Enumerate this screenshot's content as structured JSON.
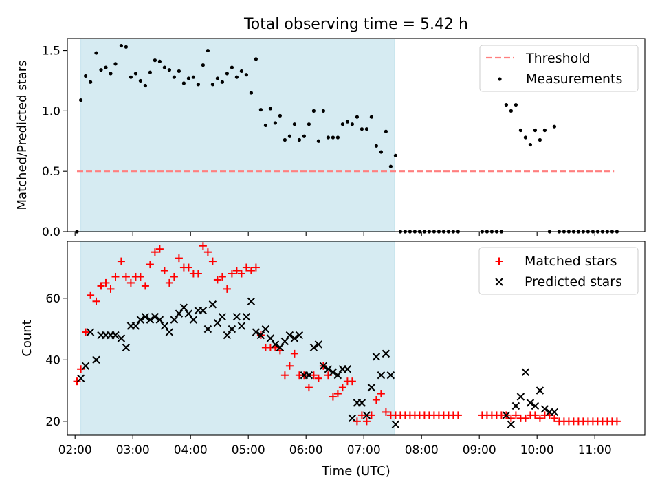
{
  "chart_data": [
    {
      "type": "scatter",
      "title": "Total observing time = 5.42 h",
      "xlabel": "",
      "ylabel": "Matched/Predicted stars",
      "x_unit": "time (UTC)",
      "xlim": [
        "01:52",
        "11:52"
      ],
      "ylim": [
        0,
        1.6
      ],
      "yticks": [
        0.0,
        0.5,
        1.0,
        1.5
      ],
      "ytick_labels": [
        "0.0",
        "0.5",
        "1.0",
        "1.5"
      ],
      "shaded_span": [
        "02:06",
        "07:32"
      ],
      "shade_color": "#add8e6",
      "legend_position": "upper right",
      "series": [
        {
          "name": "Threshold",
          "kind": "line",
          "style": "dashed",
          "color": "#ff7f7f",
          "x": [
            "02:02",
            "11:20"
          ],
          "y": [
            0.5,
            0.5
          ]
        },
        {
          "name": "Measurements",
          "kind": "points",
          "color": "#000000",
          "x": [
            "02:02",
            "02:06",
            "02:11",
            "02:16",
            "02:22",
            "02:27",
            "02:32",
            "02:37",
            "02:42",
            "02:48",
            "02:53",
            "02:58",
            "03:03",
            "03:08",
            "03:13",
            "03:18",
            "03:23",
            "03:28",
            "03:33",
            "03:38",
            "03:43",
            "03:48",
            "03:53",
            "03:58",
            "04:03",
            "04:08",
            "04:13",
            "04:18",
            "04:23",
            "04:28",
            "04:33",
            "04:38",
            "04:43",
            "04:48",
            "04:53",
            "04:58",
            "05:03",
            "05:08",
            "05:13",
            "05:18",
            "05:23",
            "05:28",
            "05:33",
            "05:38",
            "05:43",
            "05:48",
            "05:53",
            "05:58",
            "06:03",
            "06:08",
            "06:13",
            "06:18",
            "06:23",
            "06:28",
            "06:33",
            "06:38",
            "06:43",
            "06:48",
            "06:53",
            "06:58",
            "07:03",
            "07:08",
            "07:13",
            "07:18",
            "07:23",
            "07:28",
            "07:33",
            "07:38",
            "07:43",
            "07:48",
            "07:53",
            "07:58",
            "08:03",
            "08:08",
            "08:13",
            "08:18",
            "08:23",
            "08:28",
            "08:33",
            "08:38",
            "09:03",
            "09:08",
            "09:13",
            "09:18",
            "09:23",
            "09:28",
            "09:33",
            "09:38",
            "09:43",
            "09:48",
            "09:53",
            "09:58",
            "10:03",
            "10:08",
            "10:13",
            "10:18",
            "10:23",
            "10:28",
            "10:33",
            "10:38",
            "10:43",
            "10:48",
            "10:53",
            "10:58",
            "11:03",
            "11:08",
            "11:13",
            "11:18",
            "11:23"
          ],
          "y": [
            0.0,
            1.09,
            1.29,
            1.24,
            1.48,
            1.34,
            1.36,
            1.31,
            1.39,
            1.54,
            1.53,
            1.28,
            1.31,
            1.25,
            1.21,
            1.32,
            1.42,
            1.41,
            1.36,
            1.34,
            1.28,
            1.33,
            1.23,
            1.27,
            1.28,
            1.22,
            1.38,
            1.5,
            1.22,
            1.27,
            1.24,
            1.31,
            1.36,
            1.28,
            1.33,
            1.3,
            1.15,
            1.43,
            1.01,
            0.88,
            1.02,
            0.9,
            0.96,
            0.76,
            0.79,
            0.89,
            0.76,
            0.79,
            0.89,
            1.0,
            0.75,
            1.0,
            0.78,
            0.78,
            0.78,
            0.89,
            0.91,
            0.89,
            0.95,
            0.85,
            0.85,
            0.95,
            0.71,
            0.66,
            0.83,
            0.54,
            0.63,
            0.0,
            0.0,
            0.0,
            0.0,
            0.0,
            0.0,
            0.0,
            0.0,
            0.0,
            0.0,
            0.0,
            0.0,
            0.0,
            0.0,
            0.0,
            0.0,
            0.0,
            0.0,
            1.05,
            1.0,
            1.05,
            0.84,
            0.78,
            0.72,
            0.84,
            0.76,
            0.84,
            0.0,
            0.87,
            0.0,
            0.0,
            0.0,
            0.0,
            0.0,
            0.0,
            0.0,
            0.0,
            0.0,
            0.0,
            0.0,
            0.0,
            0.0
          ]
        }
      ]
    },
    {
      "type": "scatter",
      "title": "",
      "xlabel": "Time (UTC)",
      "ylabel": "Count",
      "x_unit": "time (UTC)",
      "xlim": [
        "01:52",
        "11:52"
      ],
      "ylim": [
        15.5,
        78.5
      ],
      "yticks": [
        20,
        40,
        60
      ],
      "ytick_labels": [
        "20",
        "40",
        "60"
      ],
      "xticks": [
        "02:00",
        "03:00",
        "04:00",
        "05:00",
        "06:00",
        "07:00",
        "08:00",
        "09:00",
        "10:00",
        "11:00"
      ],
      "xtick_labels": [
        "02:00",
        "03:00",
        "04:00",
        "05:00",
        "06:00",
        "07:00",
        "08:00",
        "09:00",
        "10:00",
        "11:00"
      ],
      "shaded_span": [
        "02:06",
        "07:32"
      ],
      "shade_color": "#add8e6",
      "legend_position": "upper right",
      "series": [
        {
          "name": "Matched stars",
          "marker": "plus",
          "color": "#ff0000",
          "x": [
            "02:02",
            "02:06",
            "02:11",
            "02:16",
            "02:22",
            "02:27",
            "02:32",
            "02:37",
            "02:42",
            "02:48",
            "02:53",
            "02:58",
            "03:03",
            "03:08",
            "03:13",
            "03:18",
            "03:23",
            "03:28",
            "03:33",
            "03:38",
            "03:43",
            "03:48",
            "03:53",
            "03:58",
            "04:03",
            "04:08",
            "04:13",
            "04:18",
            "04:23",
            "04:28",
            "04:33",
            "04:38",
            "04:43",
            "04:48",
            "04:53",
            "04:58",
            "05:03",
            "05:08",
            "05:13",
            "05:18",
            "05:23",
            "05:28",
            "05:33",
            "05:38",
            "05:43",
            "05:48",
            "05:53",
            "05:58",
            "06:03",
            "06:08",
            "06:13",
            "06:18",
            "06:23",
            "06:28",
            "06:33",
            "06:38",
            "06:43",
            "06:48",
            "06:53",
            "06:58",
            "07:03",
            "07:08",
            "07:13",
            "07:18",
            "07:23",
            "07:28",
            "07:33",
            "07:38",
            "07:43",
            "07:48",
            "07:53",
            "07:58",
            "08:03",
            "08:08",
            "08:13",
            "08:18",
            "08:23",
            "08:28",
            "08:33",
            "08:38",
            "09:03",
            "09:08",
            "09:13",
            "09:18",
            "09:23",
            "09:28",
            "09:33",
            "09:38",
            "09:43",
            "09:48",
            "09:53",
            "09:58",
            "10:03",
            "10:08",
            "10:13",
            "10:18",
            "10:23",
            "10:28",
            "10:33",
            "10:38",
            "10:43",
            "10:48",
            "10:53",
            "10:58",
            "11:03",
            "11:08",
            "11:13",
            "11:18",
            "11:23"
          ],
          "y": [
            33,
            37,
            49,
            61,
            59,
            64,
            65,
            63,
            67,
            72,
            67,
            65,
            67,
            67,
            64,
            71,
            75,
            76,
            69,
            65,
            67,
            73,
            70,
            70,
            68,
            68,
            77,
            75,
            72,
            66,
            67,
            63,
            68,
            69,
            68,
            70,
            69,
            70,
            48,
            44,
            44,
            44,
            43,
            35,
            38,
            42,
            35,
            35,
            31,
            35,
            34,
            38,
            35,
            28,
            29,
            31,
            33,
            33,
            20,
            22,
            20,
            22,
            27,
            29,
            23,
            22,
            22,
            22,
            22,
            22,
            22,
            22,
            22,
            22,
            22,
            22,
            22,
            22,
            22,
            22,
            22,
            22,
            22,
            22,
            22,
            22,
            21,
            22,
            21,
            21,
            22,
            22,
            21,
            22,
            22,
            21,
            20,
            20,
            20,
            20,
            20,
            20,
            20,
            20,
            20,
            20,
            20,
            20,
            20
          ]
        },
        {
          "name": "Predicted stars",
          "marker": "x",
          "color": "#000000",
          "x": [
            "02:06",
            "02:11",
            "02:16",
            "02:22",
            "02:27",
            "02:32",
            "02:37",
            "02:42",
            "02:48",
            "02:53",
            "02:58",
            "03:03",
            "03:08",
            "03:13",
            "03:18",
            "03:23",
            "03:28",
            "03:33",
            "03:38",
            "03:43",
            "03:48",
            "03:53",
            "03:58",
            "04:03",
            "04:08",
            "04:13",
            "04:18",
            "04:23",
            "04:28",
            "04:33",
            "04:38",
            "04:43",
            "04:48",
            "04:53",
            "04:58",
            "05:03",
            "05:08",
            "05:13",
            "05:18",
            "05:23",
            "05:28",
            "05:33",
            "05:38",
            "05:43",
            "05:48",
            "05:53",
            "05:58",
            "06:03",
            "06:08",
            "06:13",
            "06:18",
            "06:23",
            "06:28",
            "06:33",
            "06:38",
            "06:43",
            "06:48",
            "06:53",
            "06:58",
            "07:03",
            "07:08",
            "07:13",
            "07:18",
            "07:23",
            "07:28",
            "07:33",
            "09:28",
            "09:33",
            "09:38",
            "09:43",
            "09:48",
            "09:53",
            "09:58",
            "10:03",
            "10:08",
            "10:13",
            "10:18"
          ],
          "y": [
            34,
            38,
            49,
            40,
            48,
            48,
            48,
            48,
            47,
            44,
            51,
            51,
            53,
            54,
            53,
            54,
            53,
            51,
            49,
            53,
            55,
            57,
            55,
            53,
            56,
            56,
            50,
            58,
            52,
            54,
            48,
            50,
            54,
            51,
            54,
            59,
            49,
            48,
            50,
            47,
            45,
            44,
            46,
            48,
            47,
            48,
            35,
            35,
            44,
            45,
            38,
            37,
            36,
            35,
            37,
            37,
            21,
            26,
            26,
            22,
            31,
            41,
            35,
            42,
            35,
            19,
            22,
            19,
            25,
            28,
            36,
            26,
            25,
            30,
            24,
            23,
            23
          ]
        }
      ]
    }
  ]
}
